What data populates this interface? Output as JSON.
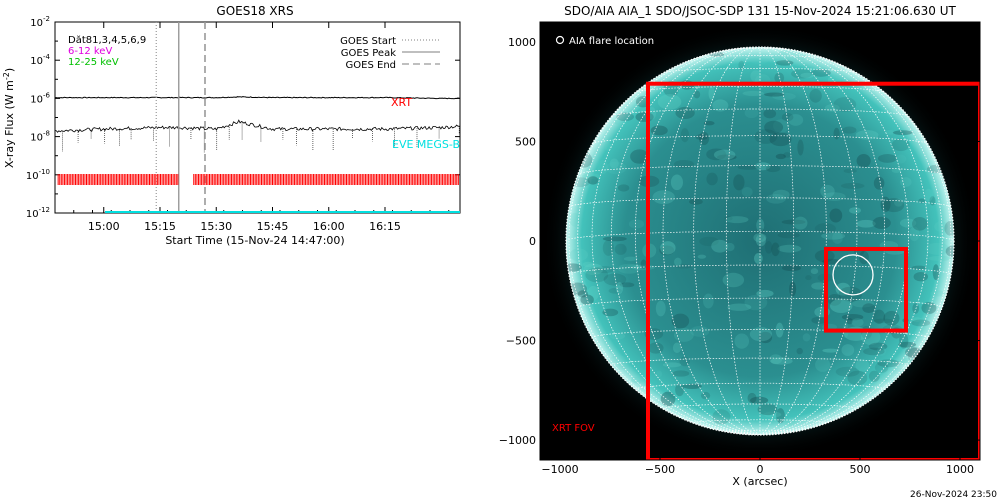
{
  "goes_panel": {
    "title": "GOES18 XRS",
    "ylabel_main": "X-ray Flux (W m",
    "ylabel_sup": "-2",
    "ylabel_close": ")",
    "xlabel": "Start Time (15-Nov-24 14:47:00)",
    "legend_left": [
      {
        "text": "Dăt81,3,4,5,6,9",
        "color": "#000000"
      },
      {
        "text": "6-12 keV",
        "color": "#e000e0"
      },
      {
        "text": "12-25 keV",
        "color": "#00c000"
      }
    ],
    "legend_right": [
      {
        "text": "GOES Start",
        "style": "dotted"
      },
      {
        "text": "GOES Peak",
        "style": "solid"
      },
      {
        "text": "GOES End",
        "style": "dashed"
      }
    ],
    "xrt_label": "XRT",
    "eve_label": "EVE MEGS-B"
  },
  "aia_panel": {
    "title": "SDO/AIA AIA_1 SDO/JSOC-SDP 131 15-Nov-2024 15:21:06.630 UT",
    "flare_location_label": "AIA flare location",
    "xlabel": "X (arcsec)",
    "xrt_fov_label": "XRT FOV"
  },
  "footer_timestamp": "26-Nov-2024 23:50",
  "colors": {
    "xrt_red": "#ff0000",
    "eve_cyan": "#00e0e0",
    "disk_teal": "#2aa5a0",
    "sky": "#000000"
  },
  "chart_data": [
    {
      "type": "line",
      "title": "GOES18 XRS",
      "xlabel": "Start Time (15-Nov-24 14:47:00)",
      "ylabel": "X-ray Flux (W m^-2)",
      "yscale": "log",
      "ylim": [
        1e-12,
        0.01
      ],
      "xlim": [
        "14:47",
        "16:35"
      ],
      "xticks": [
        "15:00",
        "15:15",
        "15:30",
        "15:45",
        "16:00",
        "16:15"
      ],
      "yticks": [
        "10^-12",
        "10^-10",
        "10^-8",
        "10^-6",
        "10^-4",
        "10^-2"
      ],
      "x": [
        "14:47",
        "15:00",
        "15:15",
        "15:20",
        "15:30",
        "15:36",
        "15:45",
        "16:00",
        "16:15",
        "16:30",
        "16:35"
      ],
      "series": [
        {
          "name": "",
          "values": [
            1.1e-06,
            1.1e-06,
            1.1e-06,
            1.1e-06,
            1.1e-06,
            1.2e-06,
            1.1e-06,
            1.1e-06,
            1.1e-06,
            1e-06,
            1e-06
          ]
        },
        {
          "name": "",
          "values": [
            2e-08,
            2.5e-08,
            3e-08,
            3e-08,
            2.5e-08,
            6e-08,
            2.5e-08,
            2.5e-08,
            2.5e-08,
            3e-08,
            3.5e-08
          ]
        }
      ],
      "vlines": [
        {
          "name": "GOES Start",
          "x": "15:14"
        },
        {
          "name": "GOES Peak",
          "x": "15:20"
        },
        {
          "name": "GOES End",
          "x": "15:27"
        }
      ],
      "xrt_coverage": [
        [
          "14:47",
          "15:20"
        ],
        [
          "15:24",
          "16:35"
        ]
      ],
      "grid": false,
      "legend": "top"
    },
    {
      "type": "heatmap",
      "title": "SDO/AIA AIA_1 SDO/JSOC-SDP 131 15-Nov-2024 15:21:06.630 UT",
      "xlabel": "X (arcsec)",
      "ylabel": "",
      "xlim": [
        -1100,
        1100
      ],
      "ylim": [
        -1100,
        1100
      ],
      "xticks": [
        -1000,
        -500,
        0,
        500,
        1000
      ],
      "yticks": [
        1000,
        500,
        0,
        -500,
        -1000
      ],
      "solar_radius_arcsec": 970,
      "xrt_fov": {
        "x": [
          -560,
          1100
        ],
        "y": [
          -1100,
          790
        ]
      },
      "flare_box": {
        "x": [
          330,
          730
        ],
        "y": [
          -450,
          -40
        ]
      },
      "flare_location": {
        "x": 465,
        "y": -170,
        "r": 100
      }
    }
  ]
}
